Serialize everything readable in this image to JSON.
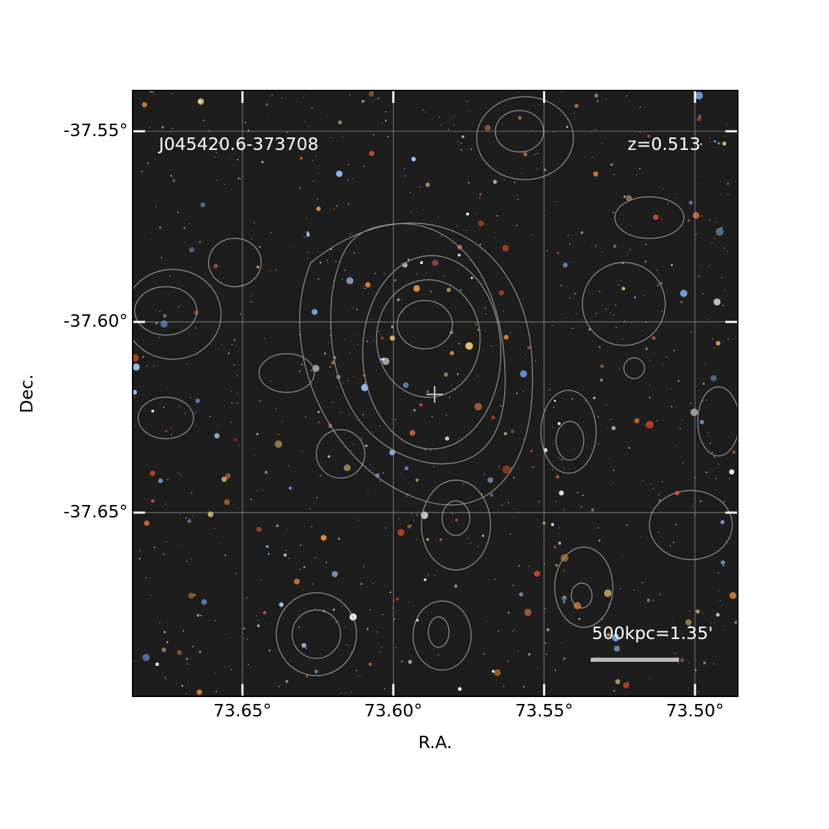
{
  "chart_data": {
    "type": "sky-image",
    "title": "J045420.6-373708",
    "redshift_label": "z=0.513",
    "scale_label": "500kpc=1.35'",
    "xlabel": "R.A.",
    "ylabel": "Dec.",
    "xlim": [
      73.6864,
      73.4858
    ],
    "ylim": [
      -37.6982,
      -37.5393
    ],
    "xticks": [
      {
        "value": 73.65,
        "label": "73.65°"
      },
      {
        "value": 73.6,
        "label": "73.60°"
      },
      {
        "value": 73.55,
        "label": "73.55°"
      },
      {
        "value": 73.5,
        "label": "73.50°"
      }
    ],
    "yticks": [
      {
        "value": -37.55,
        "label": "-37.55°"
      },
      {
        "value": -37.6,
        "label": "-37.60°"
      },
      {
        "value": -37.65,
        "label": "-37.65°"
      }
    ],
    "grid": true,
    "marker": {
      "x": 73.5863,
      "y": -37.619
    }
  }
}
